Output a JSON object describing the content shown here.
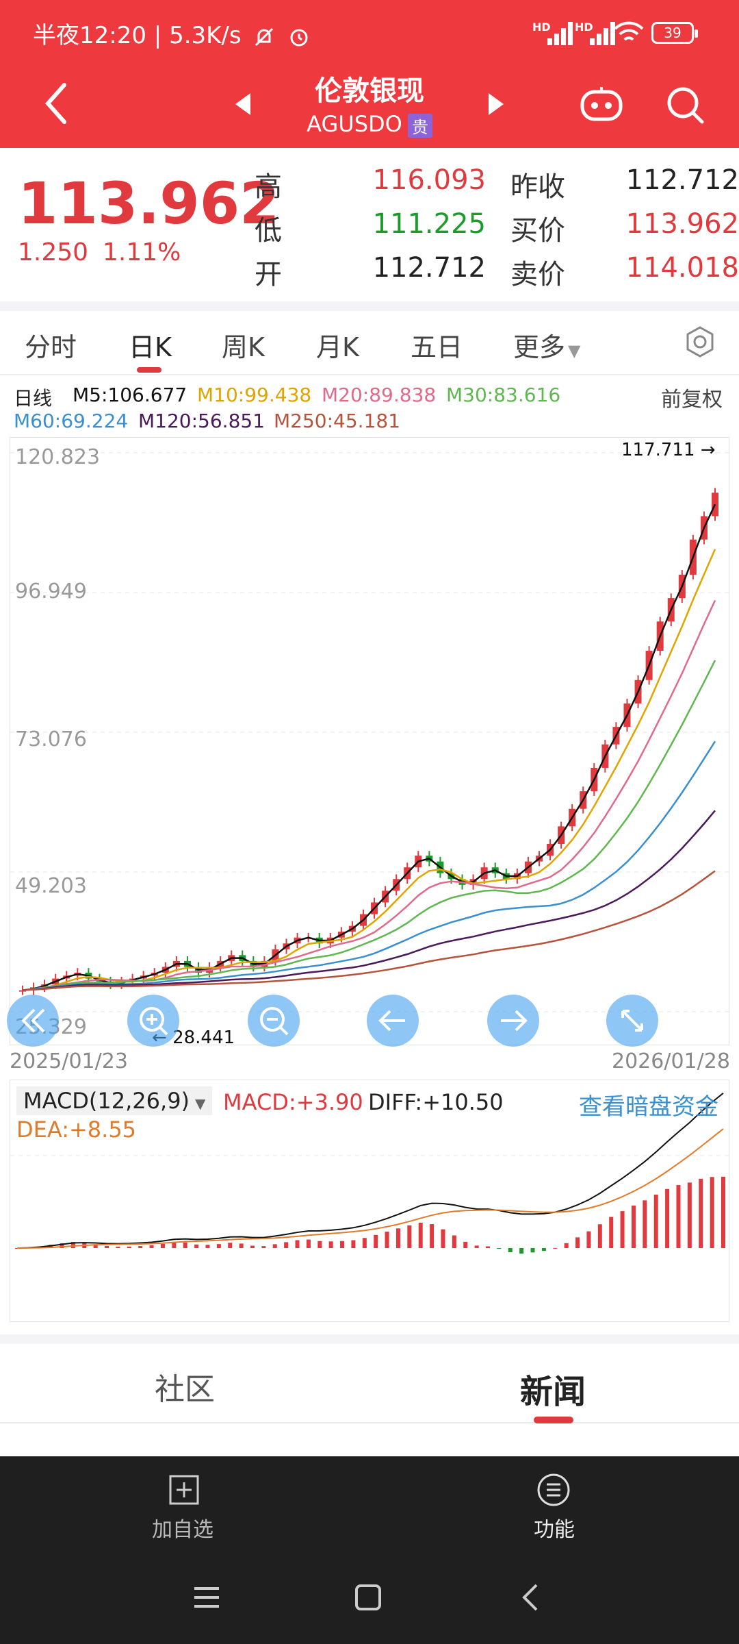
{
  "status": {
    "time": "半夜12:20",
    "speed": "5.3K/s",
    "battery": "39",
    "signal_tags": [
      "HD",
      "HD"
    ]
  },
  "header": {
    "title": "伦敦银现",
    "symbol": "AGUSDO",
    "tag": "贵"
  },
  "quote": {
    "price": "113.962",
    "change": "1.250",
    "change_pct": "1.11%",
    "rows": [
      {
        "l1": "高",
        "v1": "116.093",
        "l2": "昨收",
        "v2": "112.712"
      },
      {
        "l1": "低",
        "v1": "111.225",
        "l2": "买价",
        "v2": "113.962"
      },
      {
        "l1": "开",
        "v1": "112.712",
        "l2": "卖价",
        "v2": "114.018"
      }
    ]
  },
  "tabs": [
    "分时",
    "日K",
    "周K",
    "月K",
    "五日",
    "更多"
  ],
  "ma": {
    "label": "日线",
    "m5": "M5:106.677",
    "m10": "M10:99.438",
    "m20": "M20:89.838",
    "m30": "M30:83.616",
    "m60": "M60:69.224",
    "m120": "M120:56.851",
    "m250": "M250:45.181",
    "adjust": "前复权"
  },
  "colors": {
    "red": "#e0393e",
    "green": "#1a9b2a",
    "m5": "#111111",
    "m10": "#e0a400",
    "m20": "#e06a8a",
    "m30": "#5fb84f",
    "m60": "#3a8fd0",
    "m120": "#4b1a5a",
    "m250": "#b5533c"
  },
  "chart_data": {
    "type": "line",
    "y_ticks": [
      "120.823",
      "96.949",
      "73.076",
      "49.203",
      "25.329"
    ],
    "ylim": [
      25.329,
      120.823
    ],
    "x_start": "2025/01/23",
    "x_end": "2026/01/28",
    "max_label": "117.711",
    "min_label": "28.441",
    "close": [
      29,
      29.5,
      30,
      31,
      31.5,
      32,
      31,
      30.5,
      30,
      30.5,
      31,
      31.5,
      32,
      33,
      34,
      33,
      32,
      33,
      34,
      35,
      34,
      33,
      34,
      36,
      37,
      38,
      38,
      37,
      38,
      39,
      40,
      42,
      44,
      46,
      48,
      50,
      52,
      51,
      49,
      48,
      47,
      48,
      50,
      49,
      48,
      49,
      51,
      52,
      54,
      57,
      60,
      63,
      67,
      71,
      74,
      78,
      82,
      87,
      92,
      96,
      100,
      106,
      110,
      114
    ],
    "macd": {
      "label": "MACD(12,26,9)",
      "macd": "MACD:+3.90",
      "diff": "DIFF:+10.50",
      "dea": "DEA:+8.55",
      "link": "查看暗盘资金"
    }
  },
  "bottom_tabs": {
    "community": "社区",
    "news": "新闻"
  },
  "bottom_bar": {
    "add": "加自选",
    "func": "功能"
  }
}
